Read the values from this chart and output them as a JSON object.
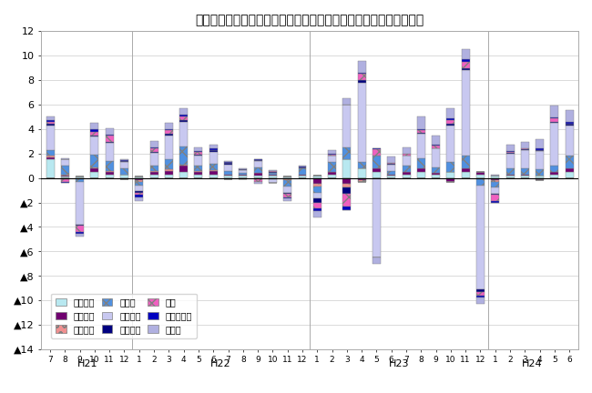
{
  "title": "三重県鉱工業生産の業種別前月比寄与度の推移（季節調整済指数）",
  "xlabels": [
    "7",
    "8",
    "9",
    "10",
    "11",
    "12",
    "1",
    "2",
    "3",
    "4",
    "5",
    "6",
    "7",
    "8",
    "9",
    "10",
    "11",
    "12",
    "1",
    "2",
    "3",
    "4",
    "5",
    "6",
    "7",
    "8",
    "9",
    "10",
    "11",
    "12",
    "1",
    "2",
    "3",
    "4",
    "5",
    "6"
  ],
  "year_groups": [
    {
      "label": "H21",
      "start": 0,
      "end": 5
    },
    {
      "label": "H22",
      "start": 6,
      "end": 17
    },
    {
      "label": "H23",
      "start": 18,
      "end": 29
    },
    {
      "label": "H24",
      "start": 30,
      "end": 35
    }
  ],
  "categories": [
    "一般機械",
    "電気機械",
    "情報通信",
    "電デバ",
    "輸送機械",
    "窦業土石",
    "化学",
    "その他工業",
    "その他"
  ],
  "face_colors": [
    "#b8e8f0",
    "#700070",
    "#f09090",
    "#5090e0",
    "#c8c8f0",
    "#000080",
    "#f060c0",
    "#0000c0",
    "#b0b0e0"
  ],
  "hatch_patterns": [
    "",
    "",
    "oo",
    "xx",
    "",
    "",
    "xx",
    "",
    ""
  ],
  "edge_colors": [
    "#909090",
    "#700070",
    "#d07070",
    "#3070c0",
    "#9090c0",
    "#000080",
    "#c040a0",
    "#0000c0",
    "#9090c0"
  ],
  "ylim": [
    -14,
    12
  ],
  "bar_width": 0.55,
  "data": {
    "一般機械": [
      1.5,
      0.1,
      0.1,
      0.5,
      0.3,
      0.3,
      0.1,
      0.3,
      0.3,
      0.5,
      0.3,
      0.3,
      0.2,
      0.2,
      0.2,
      0.2,
      0.1,
      0.2,
      0.2,
      0.3,
      1.5,
      0.8,
      0.5,
      0.2,
      0.3,
      0.5,
      0.3,
      0.5,
      0.5,
      0.3,
      0.2,
      0.2,
      0.2,
      0.2,
      0.3,
      0.5
    ],
    "電気機械": [
      0.2,
      0.1,
      -0.1,
      0.3,
      0.2,
      -0.1,
      -0.2,
      0.2,
      0.3,
      0.5,
      0.2,
      0.3,
      0.1,
      0.05,
      0.2,
      0.05,
      -0.1,
      0.1,
      -0.5,
      0.2,
      -0.5,
      -0.2,
      0.3,
      0.1,
      0.2,
      0.3,
      0.1,
      -0.3,
      0.3,
      0.2,
      -0.2,
      0.1,
      0.1,
      -0.2,
      0.2,
      0.3
    ],
    "情報通信": [
      0.1,
      0.05,
      0.0,
      0.1,
      0.1,
      0.0,
      -0.1,
      0.05,
      0.1,
      0.1,
      0.05,
      0.05,
      -0.1,
      0.0,
      0.0,
      -0.1,
      -0.1,
      0.0,
      -0.2,
      0.0,
      -0.3,
      -0.1,
      0.0,
      0.0,
      0.0,
      0.0,
      0.0,
      0.0,
      0.0,
      -0.1,
      -0.1,
      0.0,
      0.0,
      0.0,
      0.0,
      0.0
    ],
    "電デバ": [
      0.5,
      0.8,
      -0.2,
      1.0,
      0.8,
      0.5,
      -0.3,
      0.5,
      0.8,
      1.5,
      0.5,
      0.5,
      0.3,
      0.2,
      0.5,
      0.2,
      -0.5,
      0.5,
      -0.5,
      0.8,
      1.0,
      0.5,
      1.0,
      0.3,
      0.5,
      0.8,
      0.5,
      0.8,
      1.0,
      -0.5,
      -0.5,
      0.5,
      0.5,
      0.5,
      0.5,
      1.0
    ],
    "輸送機械": [
      2.0,
      0.5,
      -3.5,
      1.5,
      1.5,
      0.5,
      -0.5,
      1.0,
      2.0,
      2.0,
      0.8,
      1.0,
      0.5,
      0.2,
      0.5,
      -0.3,
      -0.5,
      0.0,
      -0.5,
      0.5,
      3.5,
      6.5,
      -6.5,
      0.5,
      0.8,
      2.0,
      1.5,
      3.0,
      7.0,
      -8.5,
      -0.5,
      1.2,
      1.5,
      1.5,
      3.5,
      2.5
    ],
    "窦業土石": [
      0.1,
      -0.1,
      -0.1,
      0.1,
      0.05,
      0.05,
      -0.1,
      0.05,
      0.1,
      0.1,
      0.05,
      0.1,
      0.1,
      0.05,
      0.05,
      0.05,
      -0.1,
      0.05,
      -0.3,
      0.05,
      -0.5,
      0.2,
      0.05,
      0.05,
      0.05,
      0.1,
      0.05,
      0.1,
      0.2,
      -0.2,
      -0.1,
      0.05,
      0.05,
      0.05,
      0.05,
      0.1
    ],
    "化学": [
      0.2,
      -0.2,
      -0.5,
      0.3,
      0.5,
      0.05,
      -0.2,
      0.3,
      0.3,
      0.3,
      0.2,
      0.05,
      0.05,
      -0.1,
      -0.3,
      0.05,
      -0.3,
      0.05,
      -0.5,
      0.05,
      -1.0,
      0.5,
      0.5,
      0.05,
      0.1,
      0.2,
      0.2,
      0.3,
      0.5,
      -0.3,
      -0.5,
      0.1,
      0.05,
      0.05,
      0.3,
      0.05
    ],
    "その他工業": [
      0.1,
      -0.1,
      -0.2,
      0.2,
      0.1,
      0.05,
      -0.2,
      0.1,
      0.1,
      0.2,
      0.1,
      0.1,
      0.05,
      0.05,
      0.05,
      0.05,
      -0.1,
      0.05,
      -0.2,
      0.05,
      -0.3,
      0.1,
      0.1,
      0.05,
      0.05,
      0.1,
      0.05,
      0.2,
      0.2,
      -0.2,
      -0.1,
      0.05,
      0.05,
      0.1,
      0.1,
      0.1
    ],
    "その他": [
      0.3,
      0.05,
      -0.2,
      0.5,
      0.5,
      0.05,
      -0.3,
      0.5,
      0.5,
      0.5,
      0.3,
      0.3,
      0.05,
      0.05,
      -0.2,
      0.05,
      -0.2,
      0.05,
      -0.5,
      0.3,
      0.5,
      1.0,
      -0.5,
      0.5,
      0.5,
      1.0,
      0.8,
      0.8,
      0.8,
      -0.5,
      0.05,
      0.5,
      0.5,
      0.8,
      1.0,
      1.0
    ]
  },
  "legend_ncol": 3,
  "legend_labels": [
    "一般機械",
    "電気機械",
    "情報通信",
    "電デバ",
    "輸送機械",
    "窦業土石",
    "化学",
    "その他工業",
    "その他"
  ]
}
